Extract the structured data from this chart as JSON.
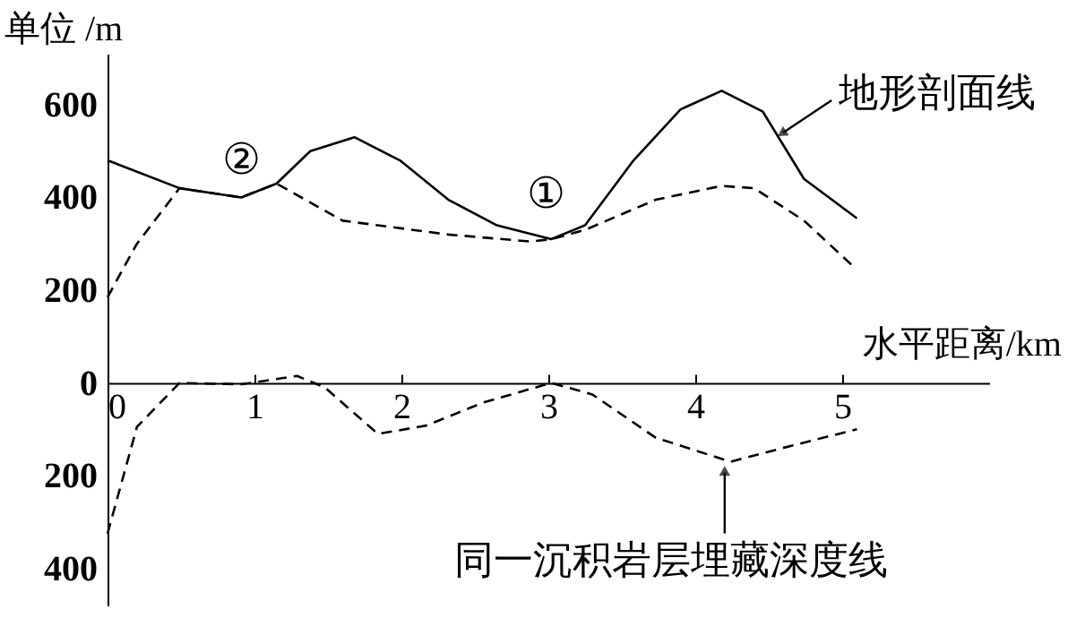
{
  "chart_data": {
    "type": "line",
    "xlabel": "水平距离/km",
    "ylabel": "单位 /m",
    "xlim": [
      0,
      6
    ],
    "ylim": [
      -480,
      710
    ],
    "xticks": [
      0,
      1,
      2,
      3,
      4,
      5
    ],
    "yticks": [
      600,
      400,
      200,
      0,
      {
        "value": -200,
        "label": "200"
      },
      {
        "value": -400,
        "label": "400"
      }
    ],
    "grid": false,
    "marker": "none",
    "series": [
      {
        "color": "#000000",
        "line_style": "solid",
        "x": [
          0,
          0.49,
          0.91,
          1.15,
          1.38,
          1.68,
          1.99,
          2.32,
          2.65,
          3.02,
          3.25,
          3.58,
          3.9,
          4.18,
          4.46,
          4.74,
          5.1
        ],
        "values": [
          480,
          420,
          400,
          430,
          500,
          530,
          480,
          395,
          340,
          310,
          340,
          480,
          590,
          630,
          585,
          440,
          355
        ]
      },
      {
        "color": "#000000",
        "line_style": "dashed",
        "x": [
          0,
          0.2,
          0.49,
          0.91,
          1.15,
          1.6,
          2.32,
          2.88,
          3.02,
          3.25,
          3.73,
          4.18,
          4.4,
          4.74,
          5.08
        ],
        "values": [
          185,
          300,
          420,
          400,
          430,
          350,
          320,
          305,
          310,
          330,
          395,
          425,
          420,
          350,
          250
        ]
      },
      {
        "color": "#000000",
        "line_style": "dashed",
        "x": [
          0,
          0.2,
          0.49,
          0.91,
          1.29,
          1.48,
          1.84,
          2.17,
          2.56,
          3.02,
          3.3,
          3.73,
          4.24,
          4.66,
          5.1
        ],
        "values": [
          -325,
          -95,
          0,
          -3,
          15,
          -10,
          -110,
          -92,
          -42,
          0,
          -25,
          -118,
          -170,
          -135,
          -100
        ]
      }
    ],
    "annotations": [
      "①",
      "②",
      {
        "text": "地形剖面线",
        "x": 4.55,
        "y": 540
      },
      {
        "text": "同一沉积岩层埋藏深度线",
        "x": 4.2,
        "y": -170
      }
    ]
  }
}
